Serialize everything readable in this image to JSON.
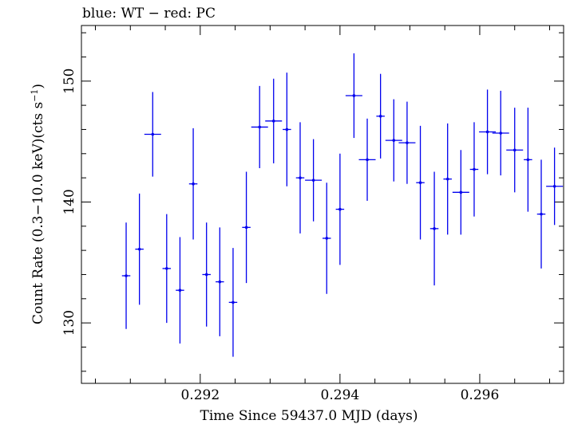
{
  "chart_data": {
    "type": "scatter",
    "title": "blue: WT − red: PC",
    "xlabel": "Time Since 59437.0 MJD (days)",
    "ylabel_main": "Count Rate (0.3−10.0 keV)(cts s",
    "ylabel_sup": "−1",
    "ylabel_end": ")",
    "xlim": [
      0.2903,
      0.2972
    ],
    "ylim": [
      125.0,
      154.6
    ],
    "xticks": [
      0.292,
      0.294,
      0.296
    ],
    "xtick_labels": [
      "0.292",
      "0.294",
      "0.296"
    ],
    "yticks": [
      130,
      140,
      150
    ],
    "ytick_labels": [
      "130",
      "140",
      "150"
    ],
    "grid": false,
    "series": [
      {
        "color": "#0000ee",
        "points": [
          {
            "x": 0.29094,
            "y": 133.9,
            "xerr": 6e-05,
            "yerr": 4.4
          },
          {
            "x": 0.29113,
            "y": 136.1,
            "xerr": 6e-05,
            "yerr": 4.6
          },
          {
            "x": 0.29132,
            "y": 145.6,
            "xerr": 0.00012,
            "yerr": 3.5
          },
          {
            "x": 0.29152,
            "y": 134.5,
            "xerr": 6e-05,
            "yerr": 4.5
          },
          {
            "x": 0.29171,
            "y": 132.7,
            "xerr": 6e-05,
            "yerr": 4.4
          },
          {
            "x": 0.2919,
            "y": 141.5,
            "xerr": 6e-05,
            "yerr": 4.6
          },
          {
            "x": 0.29209,
            "y": 134.0,
            "xerr": 6e-05,
            "yerr": 4.3
          },
          {
            "x": 0.29228,
            "y": 133.4,
            "xerr": 6e-05,
            "yerr": 4.5
          },
          {
            "x": 0.29247,
            "y": 131.7,
            "xerr": 6e-05,
            "yerr": 4.5
          },
          {
            "x": 0.29266,
            "y": 137.9,
            "xerr": 6e-05,
            "yerr": 4.6
          },
          {
            "x": 0.29285,
            "y": 146.2,
            "xerr": 0.00012,
            "yerr": 3.4
          },
          {
            "x": 0.29305,
            "y": 146.7,
            "xerr": 0.00012,
            "yerr": 3.5
          },
          {
            "x": 0.29324,
            "y": 146.0,
            "xerr": 6e-05,
            "yerr": 4.7
          },
          {
            "x": 0.29343,
            "y": 142.0,
            "xerr": 6e-05,
            "yerr": 4.6
          },
          {
            "x": 0.29362,
            "y": 141.8,
            "xerr": 0.00012,
            "yerr": 3.4
          },
          {
            "x": 0.29381,
            "y": 137.0,
            "xerr": 6e-05,
            "yerr": 4.6
          },
          {
            "x": 0.294,
            "y": 139.4,
            "xerr": 6e-05,
            "yerr": 4.6
          },
          {
            "x": 0.2942,
            "y": 148.8,
            "xerr": 0.00012,
            "yerr": 3.5
          },
          {
            "x": 0.29439,
            "y": 143.5,
            "xerr": 0.00012,
            "yerr": 3.4
          },
          {
            "x": 0.29458,
            "y": 147.1,
            "xerr": 6e-05,
            "yerr": 3.5
          },
          {
            "x": 0.29477,
            "y": 145.1,
            "xerr": 0.00012,
            "yerr": 3.4
          },
          {
            "x": 0.29496,
            "y": 144.9,
            "xerr": 0.00012,
            "yerr": 3.4
          },
          {
            "x": 0.29515,
            "y": 141.6,
            "xerr": 6e-05,
            "yerr": 4.7
          },
          {
            "x": 0.29535,
            "y": 137.8,
            "xerr": 6e-05,
            "yerr": 4.7
          },
          {
            "x": 0.29554,
            "y": 141.9,
            "xerr": 6e-05,
            "yerr": 4.6
          },
          {
            "x": 0.29573,
            "y": 140.8,
            "xerr": 0.00012,
            "yerr": 3.5
          },
          {
            "x": 0.29592,
            "y": 142.7,
            "xerr": 6e-05,
            "yerr": 3.9
          },
          {
            "x": 0.29611,
            "y": 145.8,
            "xerr": 0.00012,
            "yerr": 3.5
          },
          {
            "x": 0.2963,
            "y": 145.7,
            "xerr": 0.00012,
            "yerr": 3.5
          },
          {
            "x": 0.2965,
            "y": 144.3,
            "xerr": 0.00012,
            "yerr": 3.5
          },
          {
            "x": 0.29669,
            "y": 143.5,
            "xerr": 6e-05,
            "yerr": 4.3
          },
          {
            "x": 0.29688,
            "y": 139.0,
            "xerr": 6e-05,
            "yerr": 4.5
          },
          {
            "x": 0.29707,
            "y": 141.3,
            "xerr": 0.00012,
            "yerr": 3.2
          }
        ]
      }
    ]
  }
}
